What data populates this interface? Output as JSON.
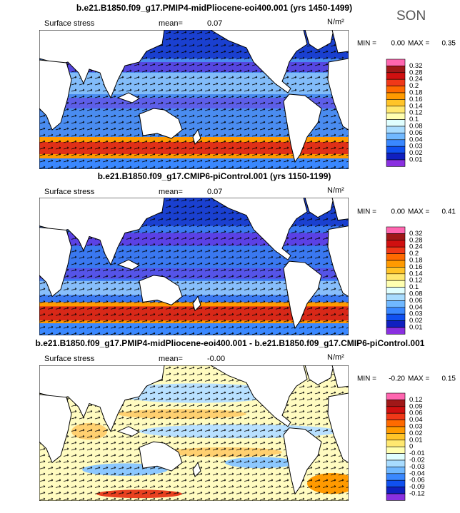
{
  "season": "SON",
  "panels": [
    {
      "title": "b.e21.B1850.f09_g17.PMIP4-midPliocene-eoi400.001 (yrs 1450-1499)",
      "field": "Surface stress",
      "mean_label": "mean=",
      "mean": "0.07",
      "unit": "N/m²",
      "min_label": "MIN =",
      "min": "0.00",
      "max_label": "MAX =",
      "max": "0.35",
      "colorbar": {
        "labels": [
          "0.32",
          "0.28",
          "0.24",
          "0.2",
          "0.18",
          "0.16",
          "0.14",
          "0.12",
          "0.1",
          "0.08",
          "0.06",
          "0.04",
          "0.03",
          "0.02",
          "0.01"
        ],
        "colors": [
          "#ff66b0",
          "#a01818",
          "#d01010",
          "#f03818",
          "#ff6a00",
          "#ff9a00",
          "#ffc428",
          "#ffe870",
          "#ffffb0",
          "#e0ffff",
          "#a8dcff",
          "#70b8ff",
          "#3a88ff",
          "#1050f0",
          "#1020c0",
          "#8a30e0"
        ]
      }
    },
    {
      "title": "b.e21.B1850.f09_g17.CMIP6-piControl.001 (yrs 1150-1199)",
      "field": "Surface stress",
      "mean_label": "mean=",
      "mean": "0.07",
      "unit": "N/m²",
      "min_label": "MIN =",
      "min": "0.00",
      "max_label": "MAX =",
      "max": "0.41",
      "colorbar": {
        "labels": [
          "0.32",
          "0.28",
          "0.24",
          "0.2",
          "0.18",
          "0.16",
          "0.14",
          "0.12",
          "0.1",
          "0.08",
          "0.06",
          "0.04",
          "0.03",
          "0.02",
          "0.01"
        ],
        "colors": [
          "#ff66b0",
          "#a01818",
          "#d01010",
          "#f03818",
          "#ff6a00",
          "#ff9a00",
          "#ffc428",
          "#ffe870",
          "#ffffb0",
          "#e0ffff",
          "#a8dcff",
          "#70b8ff",
          "#3a88ff",
          "#1050f0",
          "#1020c0",
          "#8a30e0"
        ]
      }
    },
    {
      "title": "b.e21.B1850.f09_g17.PMIP4-midPliocene-eoi400.001 - b.e21.B1850.f09_g17.CMIP6-piControl.001",
      "field": "Surface stress",
      "mean_label": "mean=",
      "mean": "-0.00",
      "unit": "N/m²",
      "min_label": "MIN =",
      "min": "-0.20",
      "max_label": "MAX =",
      "max": "0.15",
      "colorbar": {
        "labels": [
          "0.12",
          "0.09",
          "0.06",
          "0.04",
          "0.03",
          "0.02",
          "0.01",
          "0",
          "-0.01",
          "-0.02",
          "-0.03",
          "-0.04",
          "-0.06",
          "-0.09",
          "-0.12"
        ],
        "colors": [
          "#ff66b0",
          "#a01818",
          "#d01010",
          "#f03818",
          "#ff6a00",
          "#ff9a00",
          "#ffc428",
          "#ffe870",
          "#ffffb0",
          "#e0ffff",
          "#a8dcff",
          "#70b8ff",
          "#3a88ff",
          "#1050f0",
          "#1020c0",
          "#8a30e0"
        ]
      }
    }
  ]
}
